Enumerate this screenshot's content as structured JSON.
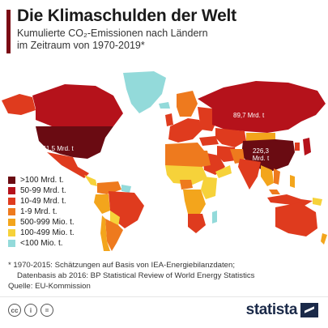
{
  "header": {
    "title": "Die Klimaschulden der Welt",
    "subtitle_line1": "Kumulierte CO₂-Emissionen nach Ländern",
    "subtitle_line2": "im Zeitraum von 1970-2019*"
  },
  "map": {
    "labels": {
      "usa": "261,5 Mrd. t",
      "russia": "89,7 Mrd. t",
      "china_line1": "226,3",
      "china_line2": "Mrd. t"
    }
  },
  "legend": {
    "items": [
      {
        "label": ">100 Mrd. t.",
        "color": "#6a0b12"
      },
      {
        "label": "50-99 Mrd. t.",
        "color": "#b5121b"
      },
      {
        "label": "10-49 Mrd. t.",
        "color": "#df3b1e"
      },
      {
        "label": "1-9 Mrd. t.",
        "color": "#ee7a1e"
      },
      {
        "label": "500-999 Mio. t.",
        "color": "#f3a51c"
      },
      {
        "label": "100-499 Mio. t.",
        "color": "#f6d23a"
      },
      {
        "label": "<100 Mio. t.",
        "color": "#93dada"
      }
    ]
  },
  "footnote": {
    "line1": "* 1970-2015: Schätzungen auf Basis von IEA-Energiebilanzdaten;",
    "line2": "Datenbasis ab 2016: BP Statistical Review of World Energy Statistics",
    "source": "Quelle: EU-Kommission"
  },
  "footer": {
    "brand": "statista",
    "license_icons": [
      "cc-icon",
      "by-icon",
      "nd-icon"
    ]
  }
}
